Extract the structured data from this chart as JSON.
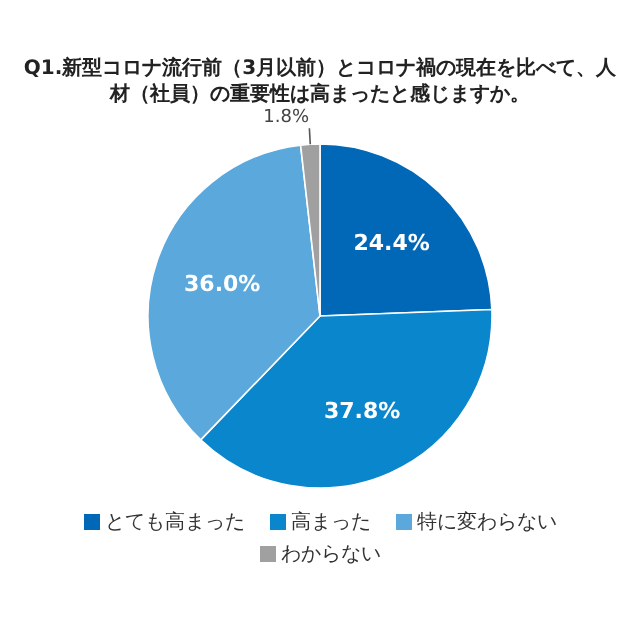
{
  "chart_data": {
    "type": "pie",
    "title": "Q1.新型コロナ流行前（3月以前）とコロナ禍の現在を比べて、人材（社員）の重要性は高まったと感じますか。",
    "categories": [
      "とても高まった",
      "高まった",
      "特に変わらない",
      "わからない"
    ],
    "values": [
      24.4,
      37.8,
      36.0,
      1.8
    ],
    "colors": [
      "#0068b7",
      "#0a86cc",
      "#5aa8dc",
      "#a0a0a0"
    ],
    "value_labels": [
      "24.4%",
      "37.8%",
      "36.0%",
      "1.8%"
    ],
    "legend": "bottom"
  }
}
